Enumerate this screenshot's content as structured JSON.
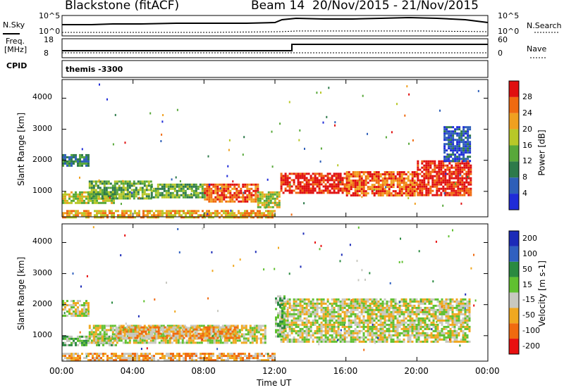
{
  "header": {
    "title": "Blackstone (fitACF)",
    "beam": "Beam 14",
    "date_range": "20/Nov/2015 - 21/Nov/2015"
  },
  "panels": {
    "noise_left_label": "N.Sky",
    "noise_right_label": "N.Search",
    "noise_ticks_left": [
      "10^5",
      "10^0"
    ],
    "noise_ticks_right": [
      "10^5",
      "10^0"
    ],
    "freq_label_line1": "Freq.",
    "freq_label_line2": "[MHz]",
    "freq_ticks": [
      "18",
      "8"
    ],
    "nave_label": "Nave",
    "nave_ticks": [
      "60",
      "0"
    ],
    "cpid_label": "CPID",
    "cpid_text": "themis -3300"
  },
  "chart_data": [
    {
      "type": "heatmap",
      "name": "power",
      "ylabel": "Slant Range [km]",
      "yticks": [
        1000,
        2000,
        3000,
        4000
      ],
      "ylim": [
        180,
        4600
      ],
      "xlim": [
        0,
        24
      ],
      "colorbar_label": "Power [dB]",
      "colorbar_ticks": [
        4,
        8,
        12,
        16,
        20,
        24,
        28
      ],
      "colorbar_colors": [
        "#1f2bd8",
        "#2e5fb8",
        "#2d7a4a",
        "#58a83a",
        "#b8c828",
        "#f0a020",
        "#f06a10",
        "#e01010"
      ],
      "bands": [
        {
          "t0": 0.0,
          "t1": 1.5,
          "r0": 1800,
          "r1": 2200,
          "level": 2
        },
        {
          "t0": 0.0,
          "t1": 3.0,
          "r0": 650,
          "r1": 1000,
          "level": 4
        },
        {
          "t0": 1.5,
          "t1": 5.0,
          "r0": 800,
          "r1": 1350,
          "level": 3
        },
        {
          "t0": 5.0,
          "t1": 8.0,
          "r0": 800,
          "r1": 1250,
          "level": 3
        },
        {
          "t0": 8.0,
          "t1": 11.0,
          "r0": 700,
          "r1": 1250,
          "level": 6
        },
        {
          "t0": 11.0,
          "t1": 12.3,
          "r0": 500,
          "r1": 1000,
          "level": 4
        },
        {
          "t0": 12.3,
          "t1": 16.0,
          "r0": 950,
          "r1": 1600,
          "level": 7
        },
        {
          "t0": 16.0,
          "t1": 20.0,
          "r0": 850,
          "r1": 1650,
          "level": 6
        },
        {
          "t0": 20.0,
          "t1": 23.0,
          "r0": 900,
          "r1": 2000,
          "level": 7
        },
        {
          "t0": 21.5,
          "t1": 23.0,
          "r0": 2000,
          "r1": 3100,
          "level": 1
        },
        {
          "t0": 0.0,
          "t1": 12.0,
          "r0": 180,
          "r1": 400,
          "level": 5
        }
      ]
    },
    {
      "type": "heatmap",
      "name": "velocity",
      "ylabel": "Slant Range [km]",
      "xlabel": "Time UT",
      "xticks": [
        "00:00",
        "04:00",
        "08:00",
        "12:00",
        "16:00",
        "20:00",
        "00:00"
      ],
      "yticks": [
        1000,
        2000,
        3000,
        4000
      ],
      "ylim": [
        180,
        4600
      ],
      "xlim": [
        0,
        24
      ],
      "colorbar_label": "Velocity [m s-1]",
      "colorbar_ticks": [
        200,
        100,
        50,
        15,
        -15,
        -50,
        -100,
        -200
      ],
      "colorbar_colors": [
        "#1c2bb8",
        "#3060c0",
        "#2a8a40",
        "#60c030",
        "#c8c8c0",
        "#f0a820",
        "#f06a10",
        "#e81010"
      ],
      "bands": [
        {
          "t0": 0.0,
          "t1": 1.5,
          "r0": 1650,
          "r1": 2150,
          "level": 4
        },
        {
          "t0": 0.0,
          "t1": 3.0,
          "r0": 700,
          "r1": 1000,
          "level": 3
        },
        {
          "t0": 1.5,
          "t1": 11.5,
          "r0": 800,
          "r1": 1350,
          "level": 4
        },
        {
          "t0": 3.0,
          "t1": 10.0,
          "r0": 900,
          "r1": 1300,
          "level": 5
        },
        {
          "t0": 12.3,
          "t1": 23.0,
          "r0": 800,
          "r1": 2200,
          "level": 4
        },
        {
          "t0": 12.0,
          "t1": 12.5,
          "r0": 1000,
          "r1": 2300,
          "level": 3
        },
        {
          "t0": 0.0,
          "t1": 12.0,
          "r0": 180,
          "r1": 450,
          "level": 5
        }
      ]
    }
  ],
  "xaxis": {
    "label": "Time UT",
    "ticks": [
      "00:00",
      "04:00",
      "08:00",
      "12:00",
      "16:00",
      "20:00",
      "00:00"
    ]
  }
}
